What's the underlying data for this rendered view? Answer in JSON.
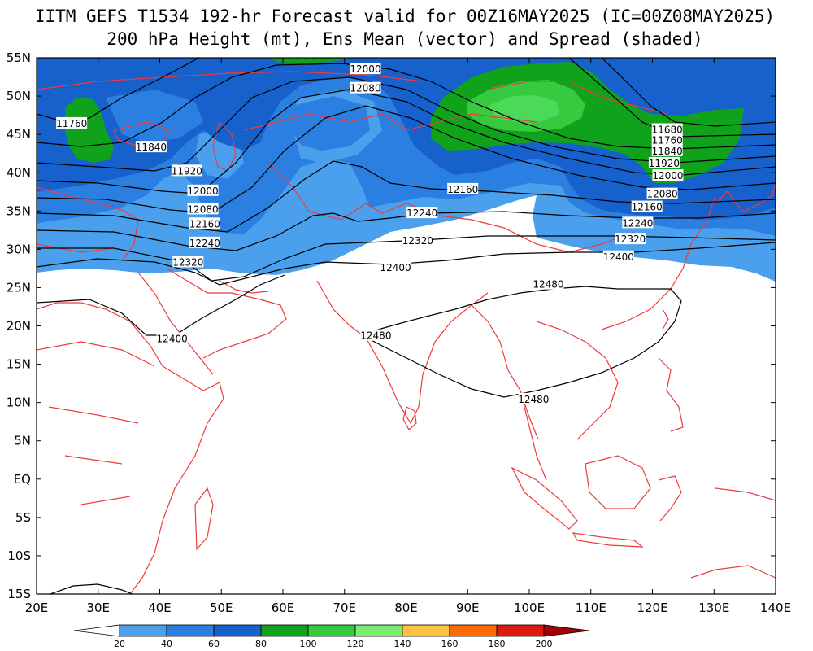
{
  "title": {
    "line1": "IITM GEFS T1534 192-hr Forecast valid for 00Z16MAY2025 (IC=00Z08MAY2025)",
    "line2": "200 hPa Height (mt), Ens Mean (vector) and Spread (shaded)"
  },
  "map": {
    "lat_labels": [
      "55N",
      "50N",
      "45N",
      "40N",
      "35N",
      "30N",
      "25N",
      "20N",
      "15N",
      "10N",
      "5N",
      "EQ",
      "5S",
      "10S",
      "15S"
    ],
    "lon_labels": [
      "20E",
      "30E",
      "40E",
      "50E",
      "60E",
      "70E",
      "80E",
      "90E",
      "100E",
      "110E",
      "120E",
      "130E",
      "140E"
    ],
    "lat_range": [
      -15,
      55
    ],
    "lon_range": [
      20,
      140
    ]
  },
  "contour_labels": [
    {
      "text": "11760",
      "lon": 25.7,
      "lat": 46.4
    },
    {
      "text": "11840",
      "lon": 38.6,
      "lat": 43.3
    },
    {
      "text": "11920",
      "lon": 44.4,
      "lat": 40.2
    },
    {
      "text": "12000",
      "lon": 47.0,
      "lat": 37.6
    },
    {
      "text": "12080",
      "lon": 47.0,
      "lat": 35.2
    },
    {
      "text": "12160",
      "lon": 47.3,
      "lat": 33.3
    },
    {
      "text": "12240",
      "lon": 47.3,
      "lat": 30.8
    },
    {
      "text": "12320",
      "lon": 44.6,
      "lat": 28.3
    },
    {
      "text": "12000",
      "lon": 73.4,
      "lat": 53.5
    },
    {
      "text": "12080",
      "lon": 73.4,
      "lat": 51.0
    },
    {
      "text": "12160",
      "lon": 89.2,
      "lat": 37.8
    },
    {
      "text": "12240",
      "lon": 82.6,
      "lat": 34.7
    },
    {
      "text": "12320",
      "lon": 81.9,
      "lat": 31.1
    },
    {
      "text": "12400",
      "lon": 78.3,
      "lat": 27.6
    },
    {
      "text": "12400",
      "lon": 42.0,
      "lat": 18.3
    },
    {
      "text": "12480",
      "lon": 75.1,
      "lat": 18.7
    },
    {
      "text": "12480",
      "lon": 103.1,
      "lat": 25.4
    },
    {
      "text": "12480",
      "lon": 100.7,
      "lat": 10.4
    },
    {
      "text": "11680",
      "lon": 122.4,
      "lat": 45.6
    },
    {
      "text": "11760",
      "lon": 122.4,
      "lat": 44.2
    },
    {
      "text": "11840",
      "lon": 122.4,
      "lat": 42.8
    },
    {
      "text": "11920",
      "lon": 121.9,
      "lat": 41.2
    },
    {
      "text": "12000",
      "lon": 122.5,
      "lat": 39.6
    },
    {
      "text": "12080",
      "lon": 121.6,
      "lat": 37.2
    },
    {
      "text": "12160",
      "lon": 119.1,
      "lat": 35.5
    },
    {
      "text": "12240",
      "lon": 117.6,
      "lat": 33.4
    },
    {
      "text": "12320",
      "lon": 116.4,
      "lat": 31.3
    },
    {
      "text": "12400",
      "lon": 114.5,
      "lat": 29.0
    }
  ],
  "colorbar": {
    "labels": [
      "20",
      "40",
      "60",
      "80",
      "100",
      "120",
      "140",
      "160",
      "180",
      "200"
    ],
    "colors": [
      "#ffffff",
      "#4aa0ec",
      "#2b7fe0",
      "#1761cc",
      "#0fa21a",
      "#36cb3f",
      "#78ee6e",
      "#ffc23c",
      "#ff6a00",
      "#e01a0a",
      "#a5000a"
    ]
  }
}
